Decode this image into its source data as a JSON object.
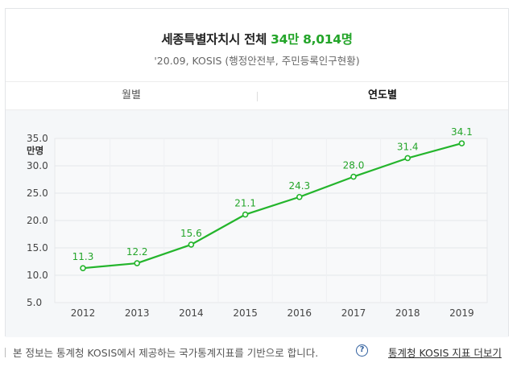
{
  "header": {
    "title_prefix": "세종특별자치시 전체 ",
    "title_highlight": "34만 8,014명",
    "subtitle": "'20.09, KOSIS (행정안전부, 주민등록인구현황)"
  },
  "tabs": [
    {
      "label": "월별",
      "active": false
    },
    {
      "label": "연도별",
      "active": true
    }
  ],
  "chart_data": {
    "type": "line",
    "unit_label": "만명",
    "categories": [
      "2012",
      "2013",
      "2014",
      "2015",
      "2016",
      "2017",
      "2018",
      "2019"
    ],
    "values": [
      11.3,
      12.2,
      15.6,
      21.1,
      24.3,
      28.0,
      31.4,
      34.1
    ],
    "data_labels": [
      "11.3",
      "12.2",
      "15.6",
      "21.1",
      "24.3",
      "28.0",
      "31.4",
      "34.1"
    ],
    "yticks": [
      "35.0",
      "30.0",
      "25.0",
      "20.0",
      "15.0",
      "10.0",
      "5.0"
    ],
    "ylim": [
      5,
      35
    ],
    "grid": true,
    "line_color": "#24b52c",
    "label_color": "#24a52a"
  },
  "footer": {
    "notice": "본 정보는 통계청 KOSIS에서 제공하는 국가통계지표를 기반으로 합니다.",
    "help_icon": "?",
    "link_label": "통계청 KOSIS 지표 더보기"
  },
  "colors": {
    "accent": "#24a52a",
    "chart_bg": "#f5f7f9",
    "link": "#2f5f9e"
  }
}
